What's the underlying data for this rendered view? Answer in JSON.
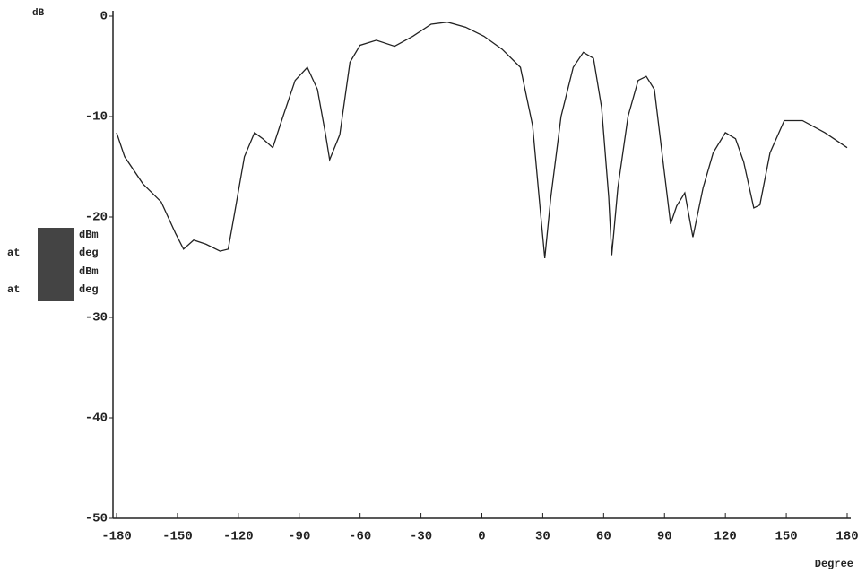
{
  "chart_data": {
    "type": "line",
    "y_label": "dB",
    "x_label": "Degree",
    "xlim": [
      -180,
      180
    ],
    "xticks": [
      -180,
      -150,
      -120,
      -90,
      -60,
      -30,
      0,
      30,
      60,
      90,
      120,
      150,
      180
    ],
    "ylim": [
      -50,
      0
    ],
    "yticks": [
      0,
      -10,
      -20,
      -30,
      -40,
      -50
    ],
    "annotations": [
      "dBm",
      "deg",
      "dBm",
      "deg",
      "at",
      "at"
    ],
    "x": [
      -180,
      -176,
      -167,
      -158,
      -151,
      -147,
      -142,
      -136,
      -129,
      -125,
      -122,
      -117,
      -112,
      -108,
      -103,
      -98,
      -92,
      -86,
      -81,
      -77,
      -75,
      -70,
      -65,
      -60,
      -52,
      -43,
      -34,
      -25,
      -17,
      -8,
      1,
      10,
      19,
      25,
      29,
      31,
      34,
      39,
      45,
      50,
      55,
      59,
      62.5,
      64,
      67,
      72,
      77,
      81,
      85,
      89,
      93,
      96,
      100,
      104,
      109,
      114,
      120,
      125,
      129,
      134,
      137,
      142,
      149,
      158,
      169,
      180
    ],
    "series": [
      {
        "color": "#222222",
        "values": [
          -11.6,
          -14,
          -16.7,
          -18.5,
          -21.6,
          -23.2,
          -22.3,
          -22.7,
          -23.4,
          -23.2,
          -19.8,
          -14,
          -11.6,
          -12.2,
          -13.1,
          -10,
          -6.4,
          -5.1,
          -7.3,
          -11.8,
          -14.3,
          -11.8,
          -4.6,
          -2.9,
          -2.4,
          -3,
          -2,
          -0.8,
          -0.6,
          -1.1,
          -2,
          -3.3,
          -5.1,
          -10.9,
          -19.8,
          -24.1,
          -18,
          -10,
          -5.1,
          -3.6,
          -4.2,
          -9.1,
          -18,
          -23.8,
          -17.1,
          -10,
          -6.4,
          -6,
          -7.3,
          -14,
          -20.7,
          -18.9,
          -17.6,
          -22,
          -17.1,
          -13.6,
          -11.6,
          -12.2,
          -14.5,
          -19.1,
          -18.8,
          -13.6,
          -10.4,
          -10.4,
          -11.6,
          -13.1
        ]
      }
    ]
  }
}
